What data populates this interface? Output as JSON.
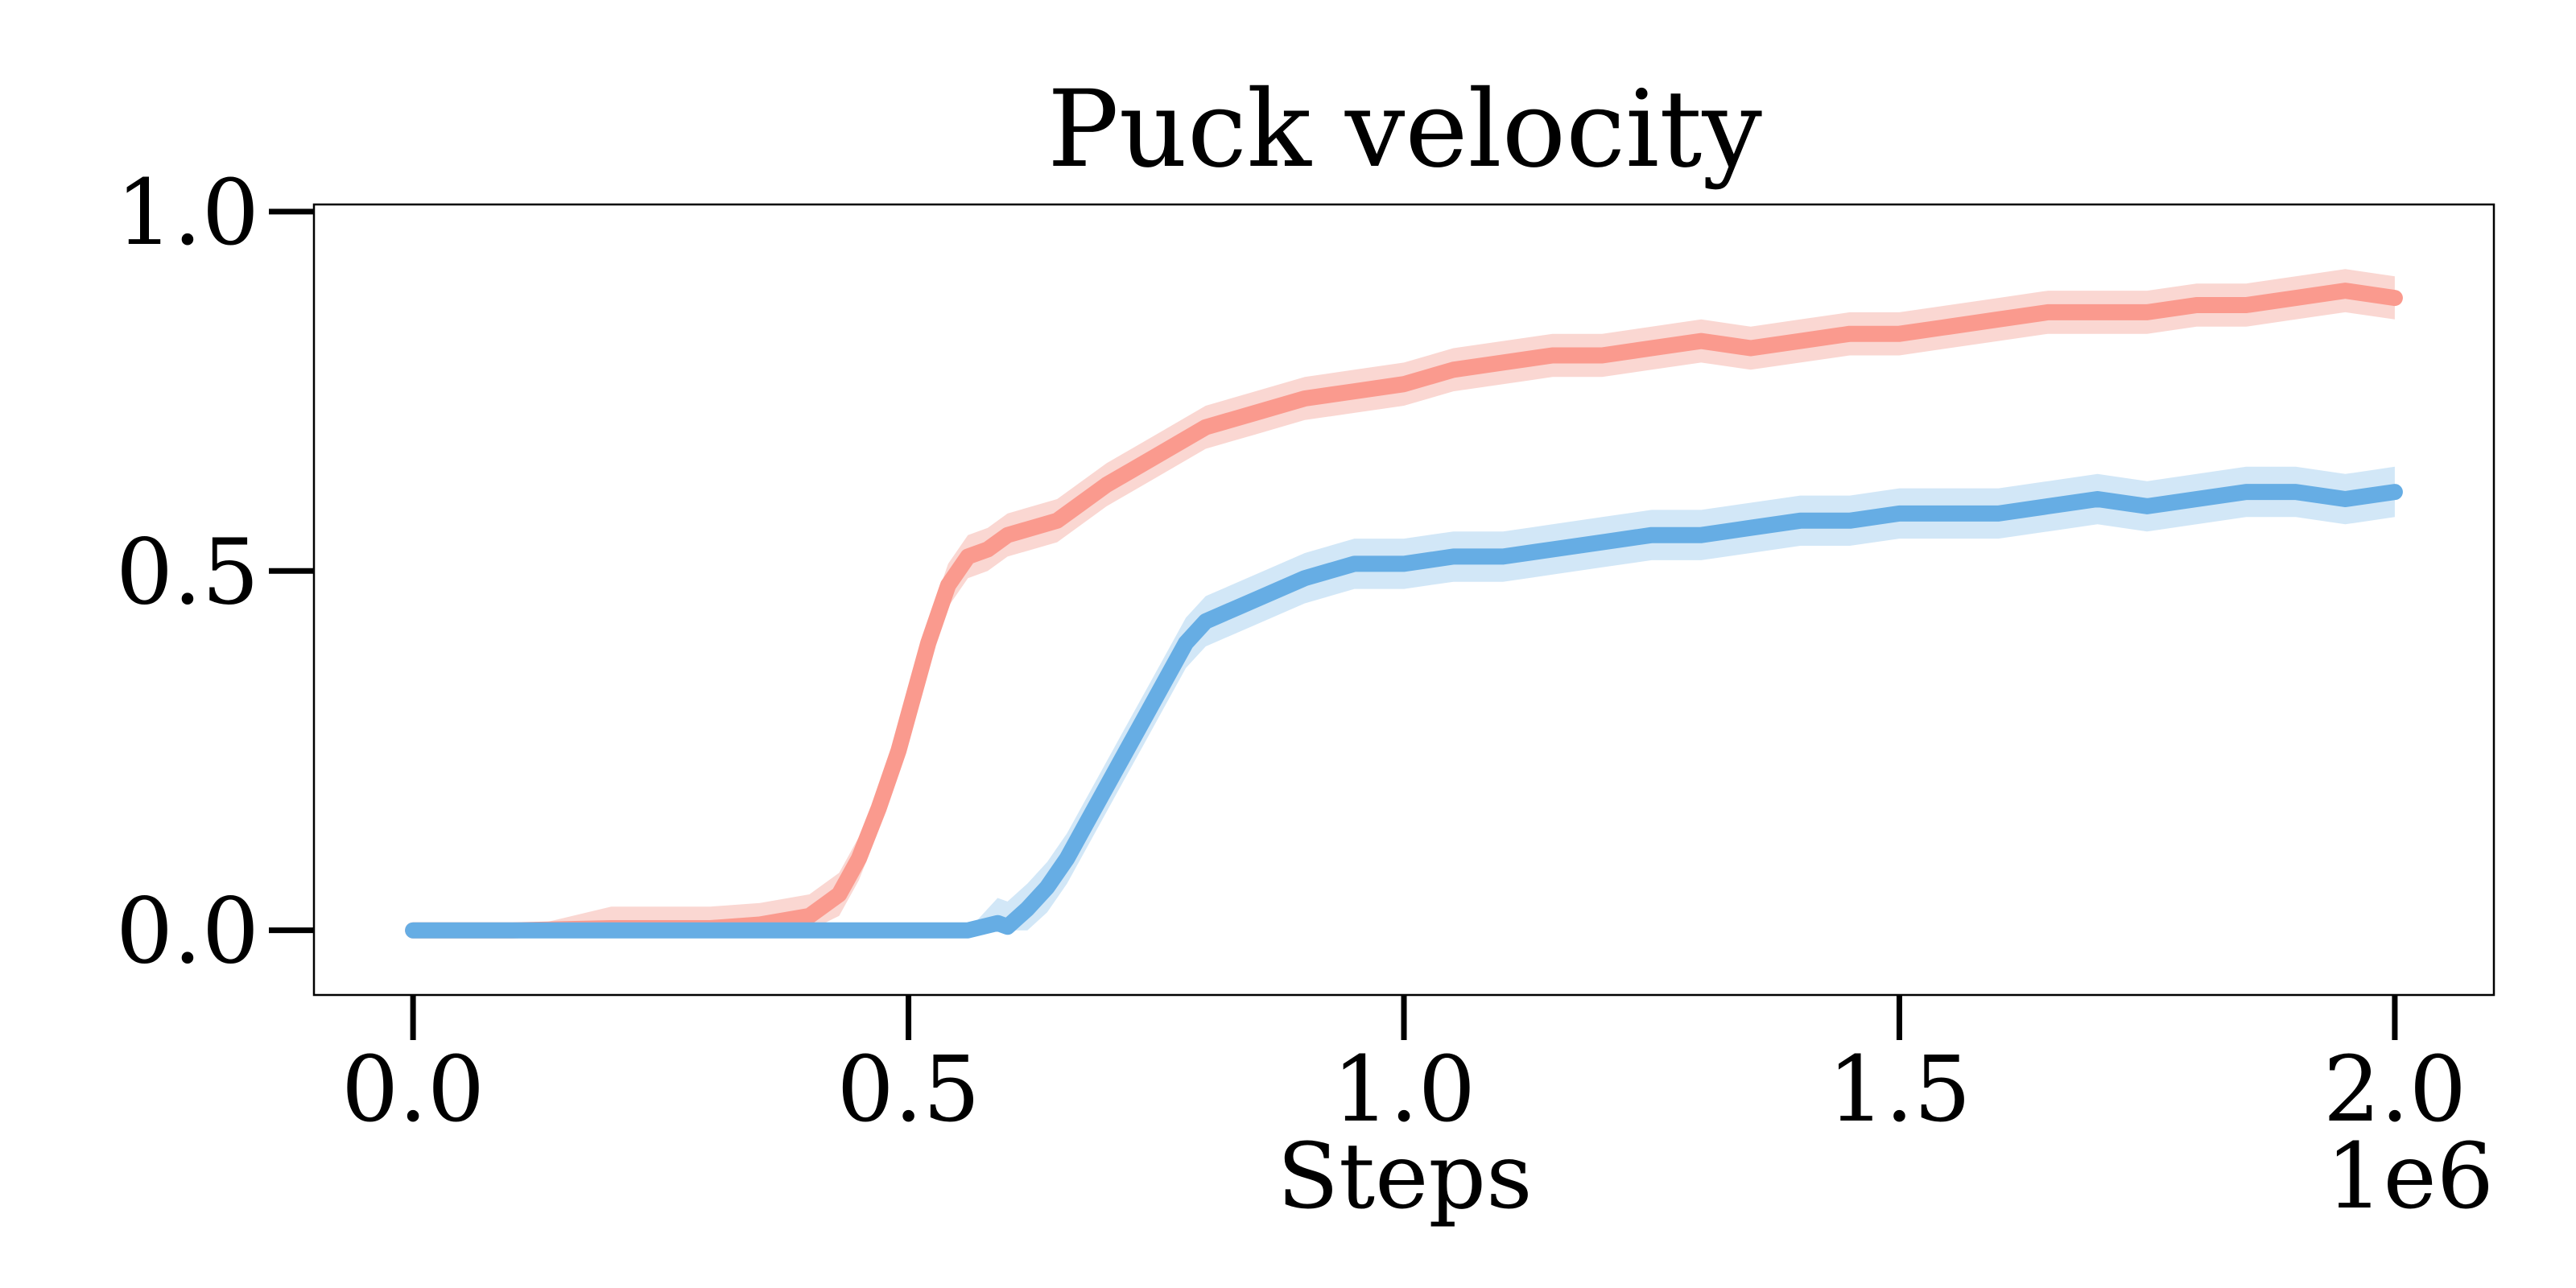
{
  "chart_data": {
    "type": "line",
    "title": "Puck velocity",
    "xlabel": "Steps",
    "ylabel": "",
    "x_offset_label": "1e6",
    "xlim": [
      -0.1,
      2.1
    ],
    "ylim": [
      -0.09,
      1.01
    ],
    "xticks": [
      0.0,
      0.5,
      1.0,
      1.5,
      2.0
    ],
    "xtick_labels": [
      "0.0",
      "0.5",
      "1.0",
      "1.5",
      "2.0"
    ],
    "yticks": [
      0.0,
      0.5,
      1.0
    ],
    "ytick_labels": [
      "0.0",
      "0.5",
      "1.0"
    ],
    "grid": false,
    "legend": "none",
    "series": [
      {
        "color": "#FA9A8E",
        "band_color": "#F8C9C3",
        "band_halfwidth": 0.03,
        "x": [
          0.0,
          0.1,
          0.2,
          0.3,
          0.35,
          0.4,
          0.43,
          0.45,
          0.47,
          0.49,
          0.5,
          0.52,
          0.54,
          0.56,
          0.58,
          0.6,
          0.65,
          0.7,
          0.75,
          0.8,
          0.85,
          0.9,
          0.95,
          1.0,
          1.05,
          1.1,
          1.15,
          1.2,
          1.25,
          1.3,
          1.35,
          1.4,
          1.45,
          1.5,
          1.55,
          1.6,
          1.65,
          1.7,
          1.75,
          1.8,
          1.85,
          1.9,
          1.95,
          2.0
        ],
        "values": [
          0.0,
          0.0,
          0.003,
          0.003,
          0.008,
          0.02,
          0.05,
          0.1,
          0.17,
          0.25,
          0.3,
          0.4,
          0.48,
          0.52,
          0.53,
          0.55,
          0.57,
          0.62,
          0.66,
          0.7,
          0.72,
          0.74,
          0.75,
          0.76,
          0.78,
          0.79,
          0.8,
          0.8,
          0.81,
          0.82,
          0.81,
          0.82,
          0.83,
          0.83,
          0.84,
          0.85,
          0.86,
          0.86,
          0.86,
          0.87,
          0.87,
          0.88,
          0.89,
          0.88
        ]
      },
      {
        "color": "#66ADE4",
        "band_color": "#C3DFF4",
        "band_halfwidth": 0.035,
        "x": [
          0.0,
          0.1,
          0.2,
          0.3,
          0.4,
          0.5,
          0.56,
          0.59,
          0.6,
          0.62,
          0.64,
          0.66,
          0.68,
          0.7,
          0.72,
          0.74,
          0.76,
          0.78,
          0.8,
          0.85,
          0.9,
          0.95,
          1.0,
          1.05,
          1.1,
          1.15,
          1.2,
          1.25,
          1.3,
          1.35,
          1.4,
          1.45,
          1.5,
          1.55,
          1.6,
          1.65,
          1.7,
          1.75,
          1.8,
          1.85,
          1.9,
          1.95,
          2.0
        ],
        "values": [
          0.0,
          0.0,
          0.0,
          0.0,
          0.0,
          0.0,
          0.0,
          0.01,
          0.005,
          0.03,
          0.06,
          0.1,
          0.15,
          0.2,
          0.25,
          0.3,
          0.35,
          0.4,
          0.43,
          0.46,
          0.49,
          0.51,
          0.51,
          0.52,
          0.52,
          0.53,
          0.54,
          0.55,
          0.55,
          0.56,
          0.57,
          0.57,
          0.58,
          0.58,
          0.58,
          0.59,
          0.6,
          0.59,
          0.6,
          0.61,
          0.61,
          0.6,
          0.61
        ]
      }
    ]
  }
}
